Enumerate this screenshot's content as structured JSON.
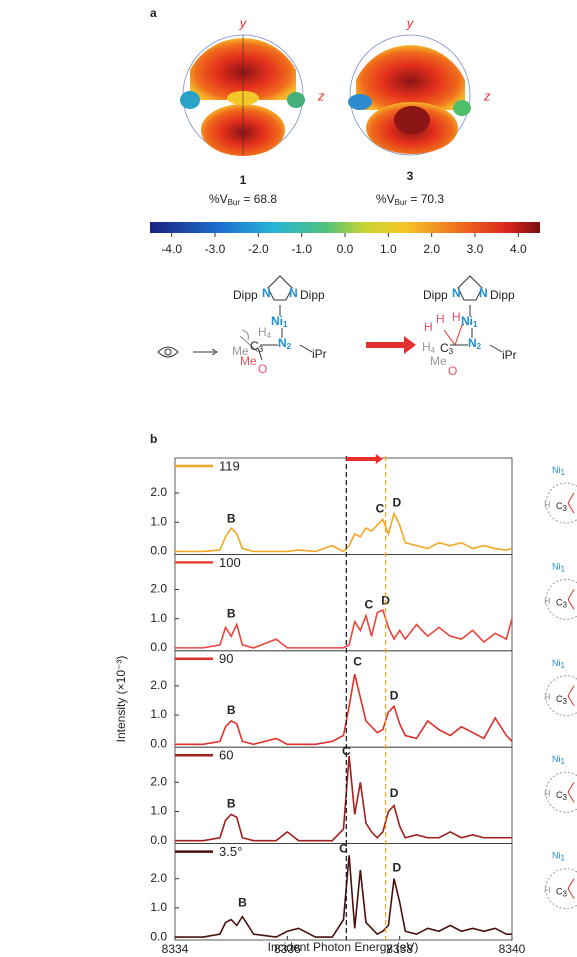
{
  "figure_a": {
    "label": "a",
    "maps": [
      {
        "y_axis": "y",
        "z_axis": "z",
        "compound": "1",
        "vbur_prefix": "%V",
        "vbur_sub": "Bur",
        "vbur_value": " = 68.8"
      },
      {
        "y_axis": "y",
        "z_axis": "z",
        "compound": "3",
        "vbur_prefix": "%V",
        "vbur_sub": "Bur",
        "vbur_value": " = 70.3"
      }
    ],
    "colorbar": {
      "lim": [
        -4.5,
        4.5
      ],
      "ticks": [
        {
          "value": -4,
          "label": "-4.0"
        },
        {
          "value": -3,
          "label": "-3.0"
        },
        {
          "value": -2,
          "label": "-2.0"
        },
        {
          "value": -1,
          "label": "-1.0"
        },
        {
          "value": 0,
          "label": "0.0"
        },
        {
          "value": 1,
          "label": "1.0"
        },
        {
          "value": 2,
          "label": "2.0"
        },
        {
          "value": 3,
          "label": "3.0"
        },
        {
          "value": 4,
          "label": "4.0"
        }
      ]
    },
    "scheme": {
      "left": {
        "dipp_l": "Dipp",
        "n_l": "N",
        "n_r": "N",
        "dipp_r": "Dipp",
        "ni": "Ni",
        "ni_sub": "1",
        "n2": "N",
        "n2_sub": "2",
        "ipr": "iPr",
        "h": "H",
        "h_sub": "4",
        "c": "C",
        "c_sub": "3",
        "me1": "Me",
        "me2": "Me",
        "o": "O"
      },
      "right": {
        "dipp_l": "Dipp",
        "n_l": "N",
        "n_r": "N",
        "dipp_r": "Dipp",
        "ni": "Ni",
        "ni_sub": "1",
        "n2": "N",
        "n2_sub": "2",
        "ipr": "iPr",
        "h1": "H",
        "h2": "H",
        "h3": "H",
        "h4": "H",
        "h4_sub": "4",
        "c": "C",
        "c_sub": "3",
        "me": "Me",
        "o": "O"
      }
    }
  },
  "figure_b": {
    "label": "b",
    "y_label": "Intensity (×10⁻³)",
    "x_label": "Incident Photon Energy (eV)",
    "reference_lines": [
      {
        "x": 8337.05,
        "color": "#111111"
      },
      {
        "x": 8337.75,
        "color": "#f5a623"
      }
    ],
    "arrow": {
      "from": 8337.05,
      "to": 8337.7,
      "color": "#e8302a"
    },
    "side_diagrams": [
      {
        "ni": "Ni",
        "ni_sub": "1",
        "c": "C",
        "c_sub": "3",
        "h": "H"
      },
      {
        "ni": "Ni",
        "ni_sub": "1",
        "c": "C",
        "c_sub": "3",
        "h": "H"
      },
      {
        "ni": "Ni",
        "ni_sub": "1",
        "c": "C",
        "c_sub": "3",
        "h": "H"
      },
      {
        "ni": "Ni",
        "ni_sub": "1",
        "c": "C",
        "c_sub": "3",
        "h": "H"
      },
      {
        "ni": "Ni",
        "ni_sub": "1",
        "c": "C",
        "c_sub": "3",
        "h": "H"
      }
    ]
  },
  "chart_data": [
    {
      "type": "line",
      "xlim": [
        8334,
        8340
      ],
      "ylim": [
        -0.1,
        3.2
      ],
      "yticks": [
        {
          "value": 0,
          "label": "0.0"
        },
        {
          "value": 1,
          "label": "1.0"
        },
        {
          "value": 2,
          "label": "2.0"
        }
      ],
      "x": [
        8334.0,
        8334.5,
        8334.8,
        8334.9,
        8335.0,
        8335.1,
        8335.2,
        8335.4,
        8335.8,
        8336.0,
        8336.2,
        8336.5,
        8336.8,
        8337.0,
        8337.1,
        8337.2,
        8337.3,
        8337.4,
        8337.5,
        8337.6,
        8337.7,
        8337.8,
        8337.9,
        8338.0,
        8338.1,
        8338.3,
        8338.5,
        8338.7,
        8338.9,
        8339.1,
        8339.3,
        8339.5,
        8339.7,
        8339.9,
        8340.0
      ],
      "series": [
        {
          "name": "119",
          "color": "#f5a623",
          "values": [
            0,
            0,
            0.05,
            0.5,
            0.8,
            0.6,
            0.1,
            0,
            0,
            0,
            0.05,
            0,
            0.2,
            0,
            0.2,
            0.6,
            0.5,
            0.8,
            0.7,
            0.9,
            1.1,
            0.6,
            1.3,
            0.9,
            0.3,
            0.2,
            0.1,
            0.3,
            0.2,
            0.3,
            0.1,
            0.2,
            0.1,
            0.05,
            0.1
          ]
        }
      ],
      "annotations": [
        {
          "text": "B",
          "x": 8335.0,
          "y": 1.1
        },
        {
          "text": "C",
          "x": 8337.65,
          "y": 1.45
        },
        {
          "text": "D",
          "x": 8337.95,
          "y": 1.65
        }
      ]
    },
    {
      "type": "line",
      "xlim": [
        8334,
        8340
      ],
      "ylim": [
        -0.1,
        3.2
      ],
      "yticks": [
        {
          "value": 0,
          "label": "0.0"
        },
        {
          "value": 1,
          "label": "1.0"
        },
        {
          "value": 2,
          "label": "2.0"
        }
      ],
      "x": [
        8334.0,
        8334.5,
        8334.8,
        8334.9,
        8335.0,
        8335.1,
        8335.2,
        8335.4,
        8335.8,
        8336.0,
        8336.2,
        8336.5,
        8336.8,
        8337.0,
        8337.1,
        8337.2,
        8337.3,
        8337.4,
        8337.5,
        8337.6,
        8337.7,
        8337.8,
        8337.9,
        8338.0,
        8338.1,
        8338.3,
        8338.5,
        8338.7,
        8338.9,
        8339.1,
        8339.3,
        8339.5,
        8339.7,
        8339.9,
        8340.0
      ],
      "series": [
        {
          "name": "100",
          "color": "#e8453c",
          "values": [
            0,
            0,
            0.1,
            0.7,
            0.4,
            0.8,
            0.1,
            0,
            0.3,
            0,
            0,
            0,
            0,
            0,
            0.1,
            0.9,
            0.6,
            1.1,
            0.4,
            1.2,
            1.3,
            0.7,
            0.3,
            0.6,
            0.3,
            0.8,
            0.4,
            0.7,
            0.4,
            0.3,
            0.6,
            0.2,
            0.5,
            0.3,
            1.0
          ]
        }
      ],
      "annotations": [
        {
          "text": "B",
          "x": 8335.0,
          "y": 1.15
        },
        {
          "text": "C",
          "x": 8337.45,
          "y": 1.45
        },
        {
          "text": "D",
          "x": 8337.75,
          "y": 1.6
        }
      ]
    },
    {
      "type": "line",
      "xlim": [
        8334,
        8340
      ],
      "ylim": [
        -0.1,
        3.2
      ],
      "yticks": [
        {
          "value": 0,
          "label": "0.0"
        },
        {
          "value": 1,
          "label": "1.0"
        },
        {
          "value": 2,
          "label": "2.0"
        }
      ],
      "x": [
        8334.0,
        8334.5,
        8334.8,
        8334.9,
        8335.0,
        8335.1,
        8335.2,
        8335.4,
        8335.8,
        8336.0,
        8336.2,
        8336.5,
        8336.8,
        8337.0,
        8337.1,
        8337.2,
        8337.3,
        8337.4,
        8337.5,
        8337.6,
        8337.7,
        8337.8,
        8337.9,
        8338.0,
        8338.1,
        8338.3,
        8338.5,
        8338.7,
        8338.9,
        8339.1,
        8339.3,
        8339.5,
        8339.7,
        8339.9,
        8340.0
      ],
      "series": [
        {
          "name": "90",
          "color": "#e0302a",
          "values": [
            0,
            0,
            0.1,
            0.6,
            0.8,
            0.7,
            0.1,
            0,
            0.2,
            0,
            0,
            0,
            0.1,
            0.3,
            1.3,
            2.4,
            1.6,
            0.8,
            0.6,
            0.4,
            0.5,
            1.1,
            1.3,
            0.7,
            0.3,
            0.2,
            0.8,
            0.5,
            0.3,
            0.6,
            0.4,
            0.2,
            0.9,
            0.3,
            0.1
          ]
        }
      ],
      "annotations": [
        {
          "text": "B",
          "x": 8335.0,
          "y": 1.15
        },
        {
          "text": "C",
          "x": 8337.25,
          "y": 2.8
        },
        {
          "text": "D",
          "x": 8337.9,
          "y": 1.65
        }
      ]
    },
    {
      "type": "line",
      "xlim": [
        8334,
        8340
      ],
      "ylim": [
        -0.1,
        3.2
      ],
      "yticks": [
        {
          "value": 0,
          "label": "0.0"
        },
        {
          "value": 1,
          "label": "1.0"
        },
        {
          "value": 2,
          "label": "2.0"
        }
      ],
      "x": [
        8334.0,
        8334.5,
        8334.8,
        8334.9,
        8335.0,
        8335.1,
        8335.2,
        8335.4,
        8335.8,
        8336.0,
        8336.2,
        8336.5,
        8336.8,
        8337.0,
        8337.1,
        8337.2,
        8337.3,
        8337.4,
        8337.5,
        8337.6,
        8337.7,
        8337.8,
        8337.9,
        8338.0,
        8338.1,
        8338.3,
        8338.5,
        8338.7,
        8338.9,
        8339.1,
        8339.3,
        8339.5,
        8339.7,
        8339.9,
        8340.0
      ],
      "series": [
        {
          "name": "60",
          "color": "#a0201e",
          "values": [
            0,
            0,
            0.1,
            0.7,
            0.9,
            0.8,
            0.1,
            0,
            0,
            0.3,
            0,
            0,
            0,
            0.4,
            2.9,
            0.9,
            2.0,
            0.6,
            0.3,
            0.1,
            0.3,
            1.0,
            1.2,
            0.5,
            0.1,
            0.2,
            0.1,
            0.1,
            0.3,
            0.1,
            0.2,
            0.1,
            0.1,
            0.1,
            0.1
          ]
        }
      ],
      "annotations": [
        {
          "text": "B",
          "x": 8335.0,
          "y": 1.25
        },
        {
          "text": "C",
          "x": 8337.05,
          "y": 3.05
        },
        {
          "text": "D",
          "x": 8337.9,
          "y": 1.6
        }
      ]
    },
    {
      "type": "line",
      "xlim": [
        8334,
        8340
      ],
      "ylim": [
        -0.1,
        3.2
      ],
      "yticks": [
        {
          "value": 0,
          "label": "0.0"
        },
        {
          "value": 1,
          "label": "1.0"
        },
        {
          "value": 2,
          "label": "2.0"
        }
      ],
      "xticks": [
        8334,
        8336,
        8338,
        8340
      ],
      "x": [
        8334.0,
        8334.5,
        8334.8,
        8334.9,
        8335.0,
        8335.1,
        8335.2,
        8335.4,
        8335.8,
        8336.0,
        8336.2,
        8336.5,
        8336.8,
        8337.0,
        8337.1,
        8337.2,
        8337.3,
        8337.4,
        8337.5,
        8337.6,
        8337.7,
        8337.8,
        8337.9,
        8338.0,
        8338.1,
        8338.3,
        8338.5,
        8338.7,
        8338.9,
        8339.1,
        8339.3,
        8339.5,
        8339.7,
        8339.9,
        8340.0
      ],
      "series": [
        {
          "name": "3.5°",
          "color": "#4a1010",
          "values": [
            0,
            0,
            0.1,
            0.5,
            0.6,
            0.4,
            0.7,
            0.1,
            0,
            0.2,
            0.3,
            0,
            0,
            0.6,
            2.8,
            0.3,
            2.3,
            0.5,
            0.3,
            0.1,
            0.2,
            0.4,
            2.0,
            1.2,
            0.2,
            0.1,
            0.3,
            0.2,
            0.4,
            0.2,
            0.3,
            0.2,
            0.3,
            0.1,
            0.1
          ]
        }
      ],
      "annotations": [
        {
          "text": "B",
          "x": 8335.2,
          "y": 1.15
        },
        {
          "text": "C",
          "x": 8337.0,
          "y": 3.0
        },
        {
          "text": "D",
          "x": 8337.95,
          "y": 2.35
        }
      ]
    }
  ]
}
